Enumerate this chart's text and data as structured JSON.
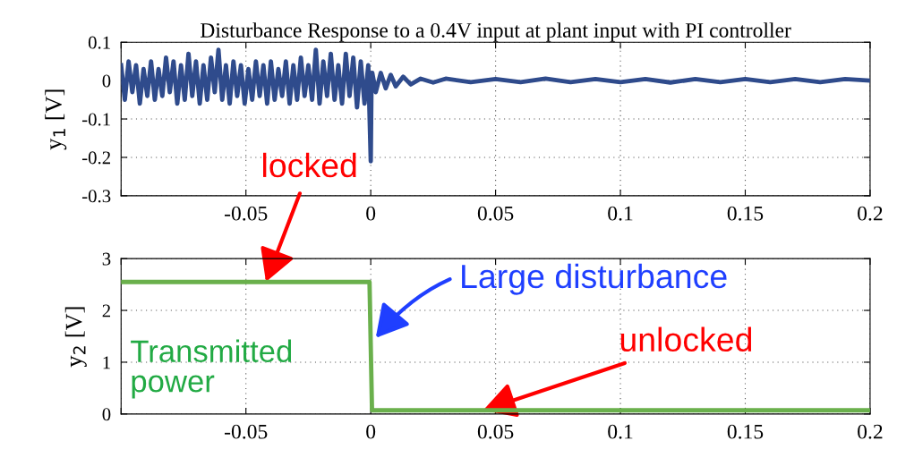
{
  "chart_data": [
    {
      "type": "line",
      "title": "Disturbance Response to a 0.4V input at plant input with PI controller",
      "ylabel": "y$_{1}$ [V]",
      "xlim": [
        -0.1,
        0.2
      ],
      "xticks": [
        {
          "value": -0.1,
          "label": null
        },
        -0.05,
        0,
        0.05,
        0.1,
        0.15,
        0.2
      ],
      "ylim": [
        -0.3,
        0.1
      ],
      "yticks": [
        -0.3,
        -0.2,
        -0.1,
        0,
        0.1
      ],
      "grid": true,
      "legend": false,
      "series": [
        {
          "color": "#2f4b8c",
          "x": [
            -0.1,
            -0.0985,
            -0.097,
            -0.0955,
            -0.094,
            -0.0925,
            -0.091,
            -0.0895,
            -0.088,
            -0.0865,
            -0.085,
            -0.0835,
            -0.082,
            -0.0805,
            -0.079,
            -0.0775,
            -0.076,
            -0.0745,
            -0.073,
            -0.0715,
            -0.07,
            -0.0685,
            -0.067,
            -0.0655,
            -0.064,
            -0.0625,
            -0.061,
            -0.0595,
            -0.058,
            -0.0565,
            -0.055,
            -0.0535,
            -0.052,
            -0.0505,
            -0.049,
            -0.0475,
            -0.046,
            -0.0445,
            -0.043,
            -0.0415,
            -0.04,
            -0.0385,
            -0.037,
            -0.0355,
            -0.034,
            -0.0325,
            -0.031,
            -0.0295,
            -0.028,
            -0.0265,
            -0.025,
            -0.0235,
            -0.022,
            -0.0205,
            -0.019,
            -0.0175,
            -0.016,
            -0.0145,
            -0.013,
            -0.0115,
            -0.01,
            -0.0085,
            -0.007,
            -0.0055,
            -0.004,
            -0.0025,
            -0.001,
            0,
            0.0003,
            0.0006,
            0.002,
            0.004,
            0.006,
            0.008,
            0.01,
            0.013,
            0.016,
            0.02,
            0.025,
            0.03,
            0.04,
            0.05,
            0.06,
            0.07,
            0.08,
            0.09,
            0.1,
            0.11,
            0.12,
            0.13,
            0.14,
            0.15,
            0.16,
            0.17,
            0.18,
            0.19,
            0.2
          ],
          "values": [
            0.04,
            -0.05,
            0.05,
            -0.03,
            0.04,
            -0.06,
            0.03,
            -0.04,
            0.05,
            -0.05,
            0.03,
            -0.04,
            0.06,
            -0.03,
            0.05,
            -0.06,
            0.04,
            -0.05,
            0.07,
            -0.04,
            0.05,
            -0.06,
            0.04,
            -0.05,
            0.06,
            -0.03,
            0.08,
            -0.05,
            0.04,
            -0.06,
            0.05,
            -0.04,
            0.04,
            -0.06,
            0.03,
            -0.05,
            0.05,
            -0.04,
            0.04,
            -0.06,
            0.05,
            -0.05,
            0.03,
            -0.04,
            0.05,
            -0.06,
            0.04,
            -0.05,
            0.06,
            -0.04,
            0.04,
            -0.05,
            0.08,
            -0.06,
            0.05,
            -0.04,
            0.07,
            -0.05,
            0.04,
            -0.06,
            0.07,
            -0.04,
            0.06,
            -0.07,
            0.05,
            -0.06,
            0.04,
            -0.21,
            0.0,
            0.02,
            -0.03,
            0.02,
            -0.02,
            0.015,
            -0.015,
            0.01,
            -0.01,
            0.005,
            -0.005,
            0.005,
            -0.004,
            0.004,
            -0.004,
            0.005,
            -0.004,
            0.004,
            -0.004,
            0.004,
            -0.005,
            0.004,
            -0.004,
            0.004,
            -0.004,
            0.004,
            -0.004,
            0.004,
            0.0
          ]
        }
      ]
    },
    {
      "type": "line",
      "ylabel": "y$_{2}$ [V]",
      "xlim": [
        -0.1,
        0.2
      ],
      "xticks": [
        {
          "value": -0.1,
          "label": null
        },
        -0.05,
        0,
        0.05,
        0.1,
        0.15,
        0.2
      ],
      "ylim": [
        0,
        3
      ],
      "yticks": [
        0,
        1,
        2,
        3
      ],
      "grid": true,
      "legend": false,
      "series": [
        {
          "name": "Transmitted power",
          "color": "#6ab04c",
          "x": [
            -0.1,
            -0.075,
            -0.05,
            -0.025,
            -0.0005,
            0.0005,
            0.05,
            0.1,
            0.15,
            0.2
          ],
          "values": [
            2.55,
            2.55,
            2.55,
            2.55,
            2.55,
            0.07,
            0.07,
            0.07,
            0.07,
            0.07
          ]
        }
      ],
      "annotations": [
        {
          "text": "locked",
          "x": -0.042,
          "y": 2.55
        },
        {
          "text": "Large disturbance",
          "x": 0.002,
          "y": 1.47
        },
        {
          "text": "unlocked",
          "x": 0.045,
          "y": 0.07
        }
      ]
    }
  ]
}
